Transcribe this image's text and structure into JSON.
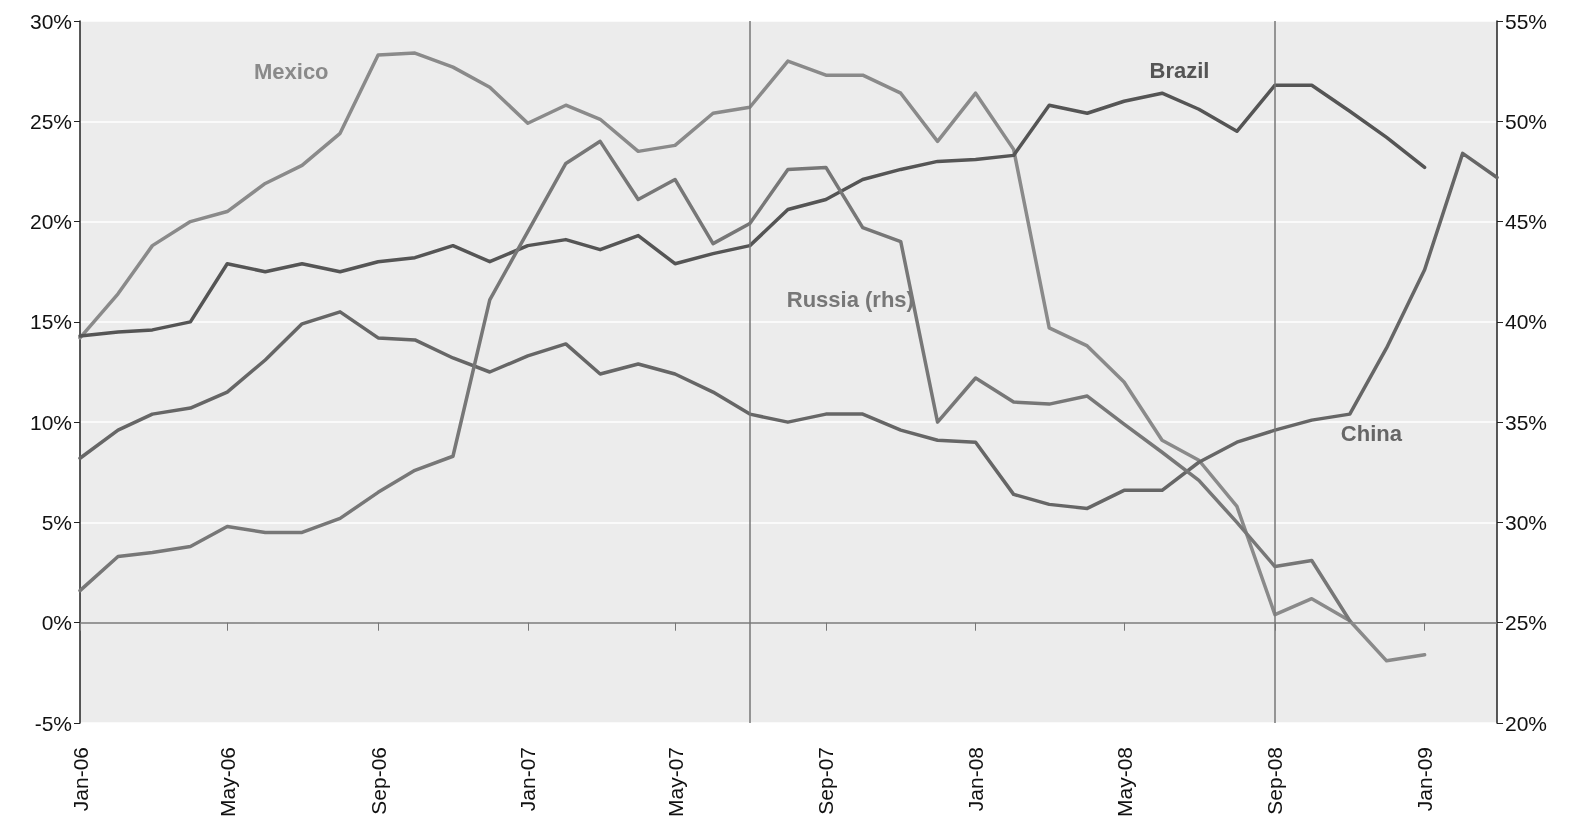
{
  "chart_data": {
    "type": "line",
    "x": [
      "2006-01",
      "2006-02",
      "2006-03",
      "2006-04",
      "2006-05",
      "2006-06",
      "2006-07",
      "2006-08",
      "2006-09",
      "2006-10",
      "2006-11",
      "2006-12",
      "2007-01",
      "2007-02",
      "2007-03",
      "2007-04",
      "2007-05",
      "2007-06",
      "2007-07",
      "2007-08",
      "2007-09",
      "2007-10",
      "2007-11",
      "2007-12",
      "2008-01",
      "2008-02",
      "2008-03",
      "2008-04",
      "2008-05",
      "2008-06",
      "2008-07",
      "2008-08",
      "2008-09",
      "2008-10",
      "2008-11",
      "2008-12",
      "2009-01",
      "2009-02",
      "2009-03"
    ],
    "series": [
      {
        "name": "Mexico",
        "color": "#8a8a8a",
        "values": [
          14.2,
          16.4,
          18.8,
          20.0,
          20.5,
          21.9,
          22.8,
          24.4,
          28.3,
          28.4,
          27.7,
          26.7,
          24.9,
          25.8,
          25.1,
          23.5,
          23.8,
          25.4,
          25.7,
          28.0,
          27.3,
          27.3,
          26.4,
          24.0,
          26.4,
          23.6,
          14.7,
          13.8,
          12.0,
          9.1,
          8.1,
          5.8,
          0.4,
          1.2,
          0.1,
          -1.9,
          -1.6,
          null,
          null
        ]
      },
      {
        "name": "Brazil",
        "color": "#555555",
        "values": [
          14.3,
          14.5,
          14.6,
          15.0,
          17.9,
          17.5,
          17.9,
          17.5,
          18.0,
          18.2,
          18.8,
          18.0,
          18.8,
          19.1,
          18.6,
          19.3,
          17.9,
          18.4,
          18.8,
          20.6,
          21.1,
          22.1,
          22.6,
          23.0,
          23.1,
          23.3,
          25.8,
          25.4,
          26.0,
          26.4,
          25.6,
          24.5,
          26.8,
          26.8,
          25.5,
          24.2,
          22.7,
          null,
          null
        ]
      },
      {
        "name": "China",
        "color": "#666666",
        "values": [
          8.2,
          9.6,
          10.4,
          10.7,
          11.5,
          13.1,
          14.9,
          15.5,
          14.2,
          14.1,
          13.2,
          12.5,
          13.3,
          13.9,
          12.4,
          12.9,
          12.4,
          11.5,
          10.4,
          10.0,
          10.4,
          10.4,
          9.6,
          9.1,
          9.0,
          6.4,
          5.9,
          5.7,
          6.6,
          6.6,
          8.0,
          9.0,
          9.6,
          10.1,
          10.4,
          13.7,
          17.6,
          23.4,
          22.2
        ]
      },
      {
        "name": "Russia (rhs)",
        "color": "#777777",
        "axis": "y2",
        "values": [
          26.6,
          28.3,
          28.5,
          28.8,
          29.8,
          29.5,
          29.5,
          30.2,
          31.5,
          32.6,
          33.3,
          41.1,
          44.5,
          47.9,
          49.0,
          46.1,
          47.1,
          43.9,
          44.9,
          47.6,
          47.7,
          44.7,
          44.0,
          35.0,
          37.2,
          36.0,
          35.9,
          36.3,
          34.9,
          33.5,
          32.1,
          30.0,
          27.8,
          28.1,
          25.1,
          null,
          null,
          null,
          null
        ]
      }
    ],
    "xlim": [
      "2006-01",
      "2009-03"
    ],
    "xticks": [
      {
        "value": "2006-01",
        "label": "Jan-06"
      },
      {
        "value": "2006-05",
        "label": "May-06"
      },
      {
        "value": "2006-09",
        "label": "Sep-06"
      },
      {
        "value": "2007-01",
        "label": "Jan-07"
      },
      {
        "value": "2007-05",
        "label": "May-07"
      },
      {
        "value": "2007-09",
        "label": "Sep-07"
      },
      {
        "value": "2008-01",
        "label": "Jan-08"
      },
      {
        "value": "2008-05",
        "label": "May-08"
      },
      {
        "value": "2008-09",
        "label": "Sep-08"
      },
      {
        "value": "2009-01",
        "label": "Jan-09"
      }
    ],
    "ylim": [
      -5,
      30
    ],
    "yticks": [
      {
        "value": -5,
        "label": "-5%"
      },
      {
        "value": 0,
        "label": "0%"
      },
      {
        "value": 5,
        "label": "5%"
      },
      {
        "value": 10,
        "label": "10%"
      },
      {
        "value": 15,
        "label": "15%"
      },
      {
        "value": 20,
        "label": "20%"
      },
      {
        "value": 25,
        "label": "25%"
      },
      {
        "value": 30,
        "label": "30%"
      }
    ],
    "y2lim": [
      20,
      55
    ],
    "y2ticks": [
      {
        "value": 20,
        "label": "20%"
      },
      {
        "value": 25,
        "label": "25%"
      },
      {
        "value": 30,
        "label": "30%"
      },
      {
        "value": 35,
        "label": "35%"
      },
      {
        "value": 40,
        "label": "40%"
      },
      {
        "value": 45,
        "label": "45%"
      },
      {
        "value": 50,
        "label": "50%"
      },
      {
        "value": 55,
        "label": "55%"
      }
    ],
    "ref_lines": [
      {
        "axis": "x",
        "value": "2007-07",
        "label": null,
        "color": "#777777"
      },
      {
        "axis": "x",
        "value": "2008-09",
        "label": null,
        "color": "#777777"
      }
    ],
    "grid": "y",
    "marker": "none",
    "line_style": "solid"
  }
}
